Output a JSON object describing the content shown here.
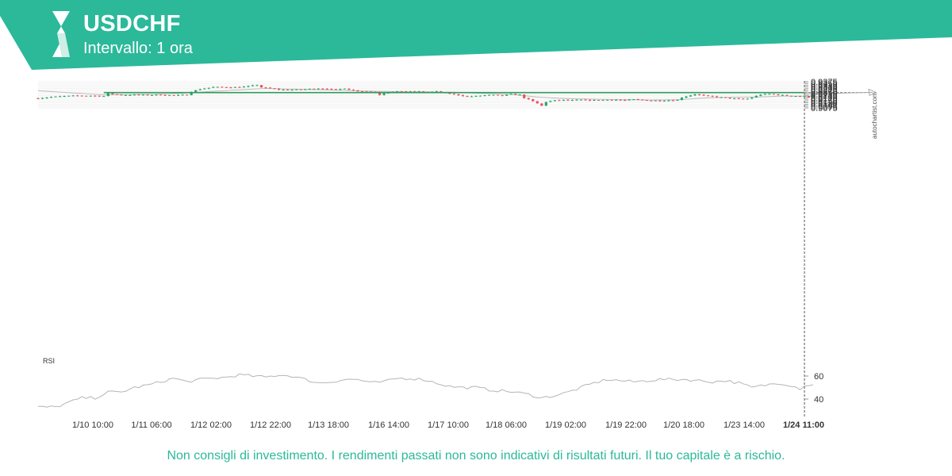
{
  "header": {
    "symbol": "USDCHF",
    "interval": "Intervallo: 1 ora",
    "brand_color": "#2bb99a"
  },
  "watermark": "autochartist.com",
  "disclaimer": "Non consigli di investimento. I rendimenti passati non sono indicativi di risultati futuri. Il tuo capitale è a rischio.",
  "chart_data": {
    "type": "candlestick",
    "price_axis": {
      "ticks": [
        "0.9375",
        "0.9355",
        "0.9335",
        "0.9315",
        "0.9295",
        "0.9275",
        "0.9255",
        "0.9235",
        "0.9215",
        "0.9195",
        "0.9175",
        "0.9155",
        "0.9135",
        "0.9115",
        "0.9095",
        "0.9075"
      ]
    },
    "time_axis": {
      "ticks": [
        "1/10 10:00",
        "1/11 06:00",
        "1/12 02:00",
        "1/12 22:00",
        "1/13 18:00",
        "1/16 14:00",
        "1/17 10:00",
        "1/18 06:00",
        "1/19 02:00",
        "1/19 22:00",
        "1/20 18:00",
        "1/23 14:00"
      ],
      "last_label": "1/24 11:00"
    },
    "colors": {
      "up": "#26a86a",
      "down": "#ea4f5e",
      "level": "#2c9e58",
      "ma": "#bdbdbd"
    },
    "key_level": 0.9251,
    "projection_target": 0.9253,
    "price_path": [
      [
        0,
        0.9185
      ],
      [
        3,
        0.92
      ],
      [
        6,
        0.921
      ],
      [
        9,
        0.9215
      ],
      [
        12,
        0.9215
      ],
      [
        15,
        0.921
      ],
      [
        16,
        0.924
      ],
      [
        19,
        0.9222
      ],
      [
        22,
        0.9225
      ],
      [
        25,
        0.9222
      ],
      [
        28,
        0.9225
      ],
      [
        31,
        0.9218
      ],
      [
        34,
        0.9225
      ],
      [
        35,
        0.9262
      ],
      [
        37,
        0.929
      ],
      [
        40,
        0.9313
      ],
      [
        43,
        0.9312
      ],
      [
        46,
        0.9312
      ],
      [
        48,
        0.9322
      ],
      [
        50,
        0.9338
      ],
      [
        51,
        0.931
      ],
      [
        53,
        0.9298
      ],
      [
        55,
        0.9285
      ],
      [
        57,
        0.9282
      ],
      [
        60,
        0.9286
      ],
      [
        62,
        0.9292
      ],
      [
        64,
        0.9298
      ],
      [
        66,
        0.9295
      ],
      [
        68,
        0.928
      ],
      [
        70,
        0.93
      ],
      [
        71,
        0.9285
      ],
      [
        73,
        0.9268
      ],
      [
        75,
        0.9262
      ],
      [
        77,
        0.9255
      ],
      [
        78,
        0.9225
      ],
      [
        79,
        0.9245
      ],
      [
        81,
        0.9258
      ],
      [
        83,
        0.9268
      ],
      [
        85,
        0.926
      ],
      [
        87,
        0.9262
      ],
      [
        89,
        0.9255
      ],
      [
        91,
        0.9262
      ],
      [
        92,
        0.9252
      ],
      [
        94,
        0.9238
      ],
      [
        96,
        0.9222
      ],
      [
        98,
        0.9205
      ],
      [
        100,
        0.921
      ],
      [
        102,
        0.922
      ],
      [
        104,
        0.9222
      ],
      [
        106,
        0.9215
      ],
      [
        108,
        0.9232
      ],
      [
        110,
        0.9225
      ],
      [
        111,
        0.919
      ],
      [
        113,
        0.915
      ],
      [
        114,
        0.9125
      ],
      [
        115,
        0.91
      ],
      [
        116,
        0.9145
      ],
      [
        118,
        0.916
      ],
      [
        120,
        0.9165
      ],
      [
        122,
        0.9162
      ],
      [
        124,
        0.9168
      ],
      [
        126,
        0.9162
      ],
      [
        128,
        0.9165
      ],
      [
        130,
        0.9168
      ],
      [
        132,
        0.9168
      ],
      [
        134,
        0.9162
      ],
      [
        136,
        0.9172
      ],
      [
        138,
        0.9165
      ],
      [
        140,
        0.916
      ],
      [
        142,
        0.9158
      ],
      [
        144,
        0.9162
      ],
      [
        146,
        0.9165
      ],
      [
        147,
        0.9195
      ],
      [
        149,
        0.922
      ],
      [
        150,
        0.9232
      ],
      [
        152,
        0.9215
      ],
      [
        154,
        0.9205
      ],
      [
        156,
        0.9195
      ],
      [
        158,
        0.9185
      ],
      [
        160,
        0.9178
      ],
      [
        162,
        0.918
      ],
      [
        163,
        0.9195
      ],
      [
        165,
        0.9228
      ],
      [
        167,
        0.9235
      ],
      [
        169,
        0.9225
      ],
      [
        171,
        0.9215
      ],
      [
        173,
        0.9212
      ],
      [
        175,
        0.921
      ],
      [
        176,
        0.9198
      ],
      [
        177,
        0.9234
      ]
    ],
    "ma_path": [
      [
        0,
        0.9272
      ],
      [
        15,
        0.9225
      ],
      [
        30,
        0.9235
      ],
      [
        40,
        0.9265
      ],
      [
        48,
        0.9288
      ],
      [
        52,
        0.9298
      ],
      [
        58,
        0.929
      ],
      [
        66,
        0.9282
      ],
      [
        74,
        0.9268
      ],
      [
        82,
        0.926
      ],
      [
        90,
        0.9258
      ],
      [
        96,
        0.9252
      ],
      [
        102,
        0.924
      ],
      [
        108,
        0.923
      ],
      [
        114,
        0.92
      ],
      [
        120,
        0.9182
      ],
      [
        130,
        0.9172
      ],
      [
        140,
        0.9165
      ],
      [
        146,
        0.9168
      ],
      [
        152,
        0.9188
      ],
      [
        158,
        0.9198
      ],
      [
        164,
        0.92
      ],
      [
        170,
        0.921
      ],
      [
        177,
        0.921
      ]
    ],
    "rsi": {
      "label": "RSI",
      "ticks": [
        "60",
        "40"
      ],
      "path": [
        [
          0,
          33
        ],
        [
          4,
          33
        ],
        [
          7,
          37
        ],
        [
          10,
          41
        ],
        [
          13,
          41
        ],
        [
          16,
          46
        ],
        [
          19,
          46
        ],
        [
          22,
          50
        ],
        [
          25,
          52
        ],
        [
          28,
          55
        ],
        [
          31,
          58
        ],
        [
          34,
          55
        ],
        [
          37,
          57
        ],
        [
          40,
          58
        ],
        [
          43,
          59
        ],
        [
          46,
          61
        ],
        [
          49,
          60
        ],
        [
          52,
          59
        ],
        [
          55,
          61
        ],
        [
          58,
          60
        ],
        [
          61,
          57
        ],
        [
          64,
          54
        ],
        [
          67,
          55
        ],
        [
          70,
          57
        ],
        [
          73,
          57
        ],
        [
          76,
          54
        ],
        [
          79,
          55
        ],
        [
          82,
          58
        ],
        [
          85,
          58
        ],
        [
          88,
          57
        ],
        [
          91,
          54
        ],
        [
          94,
          51
        ],
        [
          97,
          50
        ],
        [
          100,
          50
        ],
        [
          103,
          48
        ],
        [
          106,
          47
        ],
        [
          109,
          46
        ],
        [
          112,
          44
        ],
        [
          115,
          41
        ],
        [
          118,
          43
        ],
        [
          121,
          46
        ],
        [
          124,
          50
        ],
        [
          127,
          54
        ],
        [
          130,
          57
        ],
        [
          133,
          56
        ],
        [
          136,
          55
        ],
        [
          139,
          56
        ],
        [
          142,
          57
        ],
        [
          145,
          57
        ],
        [
          148,
          57
        ],
        [
          151,
          56
        ],
        [
          154,
          55
        ],
        [
          157,
          56
        ],
        [
          160,
          54
        ],
        [
          163,
          50
        ],
        [
          166,
          52
        ],
        [
          169,
          54
        ],
        [
          172,
          52
        ],
        [
          174,
          49
        ],
        [
          175,
          52
        ],
        [
          177,
          52
        ]
      ]
    }
  }
}
